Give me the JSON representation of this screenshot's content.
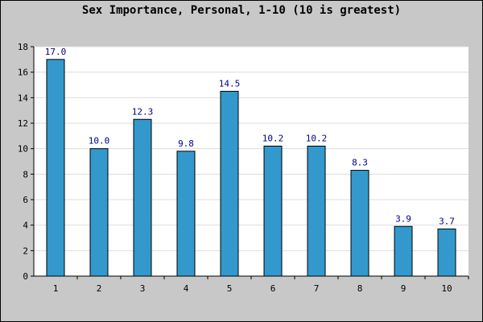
{
  "chart_data": {
    "type": "bar",
    "title": "Sex Importance, Personal, 1-10 (10 is greatest)",
    "xlabel": "",
    "ylabel": "",
    "categories": [
      "1",
      "2",
      "3",
      "4",
      "5",
      "6",
      "7",
      "8",
      "9",
      "10"
    ],
    "values": [
      17.0,
      10.0,
      12.3,
      9.8,
      14.5,
      10.2,
      10.2,
      8.3,
      3.9,
      3.7
    ],
    "value_labels": [
      "17.0",
      "10.0",
      "12.3",
      "9.8",
      "14.5",
      "10.2",
      "10.2",
      "8.3",
      "3.9",
      "3.7"
    ],
    "ylim": [
      0,
      18
    ],
    "yticks": [
      0,
      2,
      4,
      6,
      8,
      10,
      12,
      14,
      16,
      18
    ],
    "grid": true,
    "legend": "none",
    "colors": {
      "bar": "#3399cc",
      "bar_border": "#000000",
      "value_label": "#000080",
      "plot_background": "#ffffff",
      "page_background": "#c8c8c8",
      "grid": "#dddddd"
    }
  }
}
